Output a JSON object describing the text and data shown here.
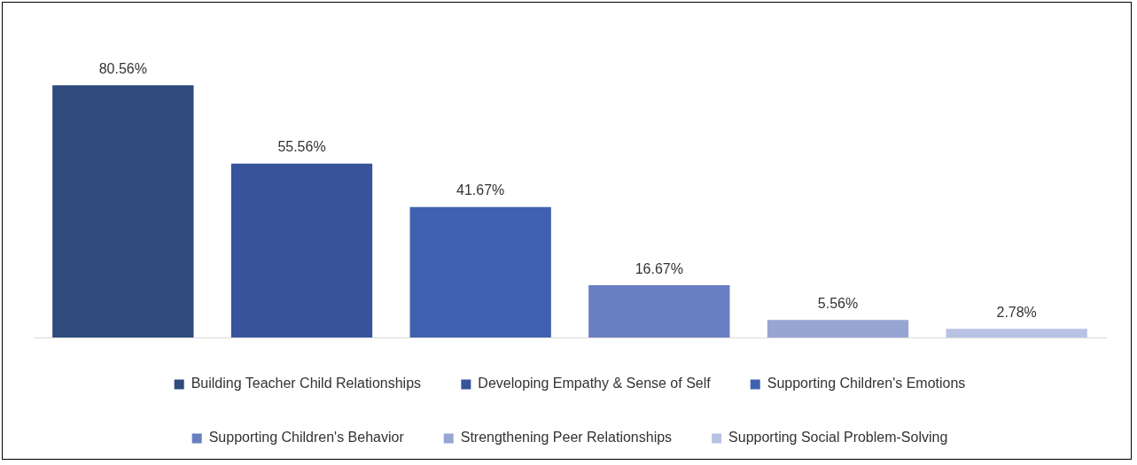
{
  "chart_data": {
    "type": "bar",
    "categories": [
      null
    ],
    "series": [
      {
        "name": "Building Teacher Child Relationships",
        "color": "#2f4a7c",
        "values": [
          80.56
        ],
        "value_labels": [
          "80.56%"
        ]
      },
      {
        "name": "Developing Empathy & Sense of Self",
        "color": "#36539b",
        "values": [
          55.56
        ],
        "value_labels": [
          "55.56%"
        ]
      },
      {
        "name": "Supporting Children's Emotions",
        "color": "#3f61b0",
        "values": [
          41.67
        ],
        "value_labels": [
          "41.67%"
        ]
      },
      {
        "name": "Supporting Children's Behavior",
        "color": "#687fc2",
        "values": [
          16.67
        ],
        "value_labels": [
          "16.67%"
        ]
      },
      {
        "name": "Strengthening Peer Relationships",
        "color": "#97a5d3",
        "values": [
          5.56
        ],
        "value_labels": [
          "5.56%"
        ]
      },
      {
        "name": "Supporting Social Problem-Solving",
        "color": "#b8c2e5",
        "values": [
          2.78
        ],
        "value_labels": [
          "2.78%"
        ]
      }
    ],
    "legend": "bottom",
    "tick_labels": false,
    "grid": false
  }
}
